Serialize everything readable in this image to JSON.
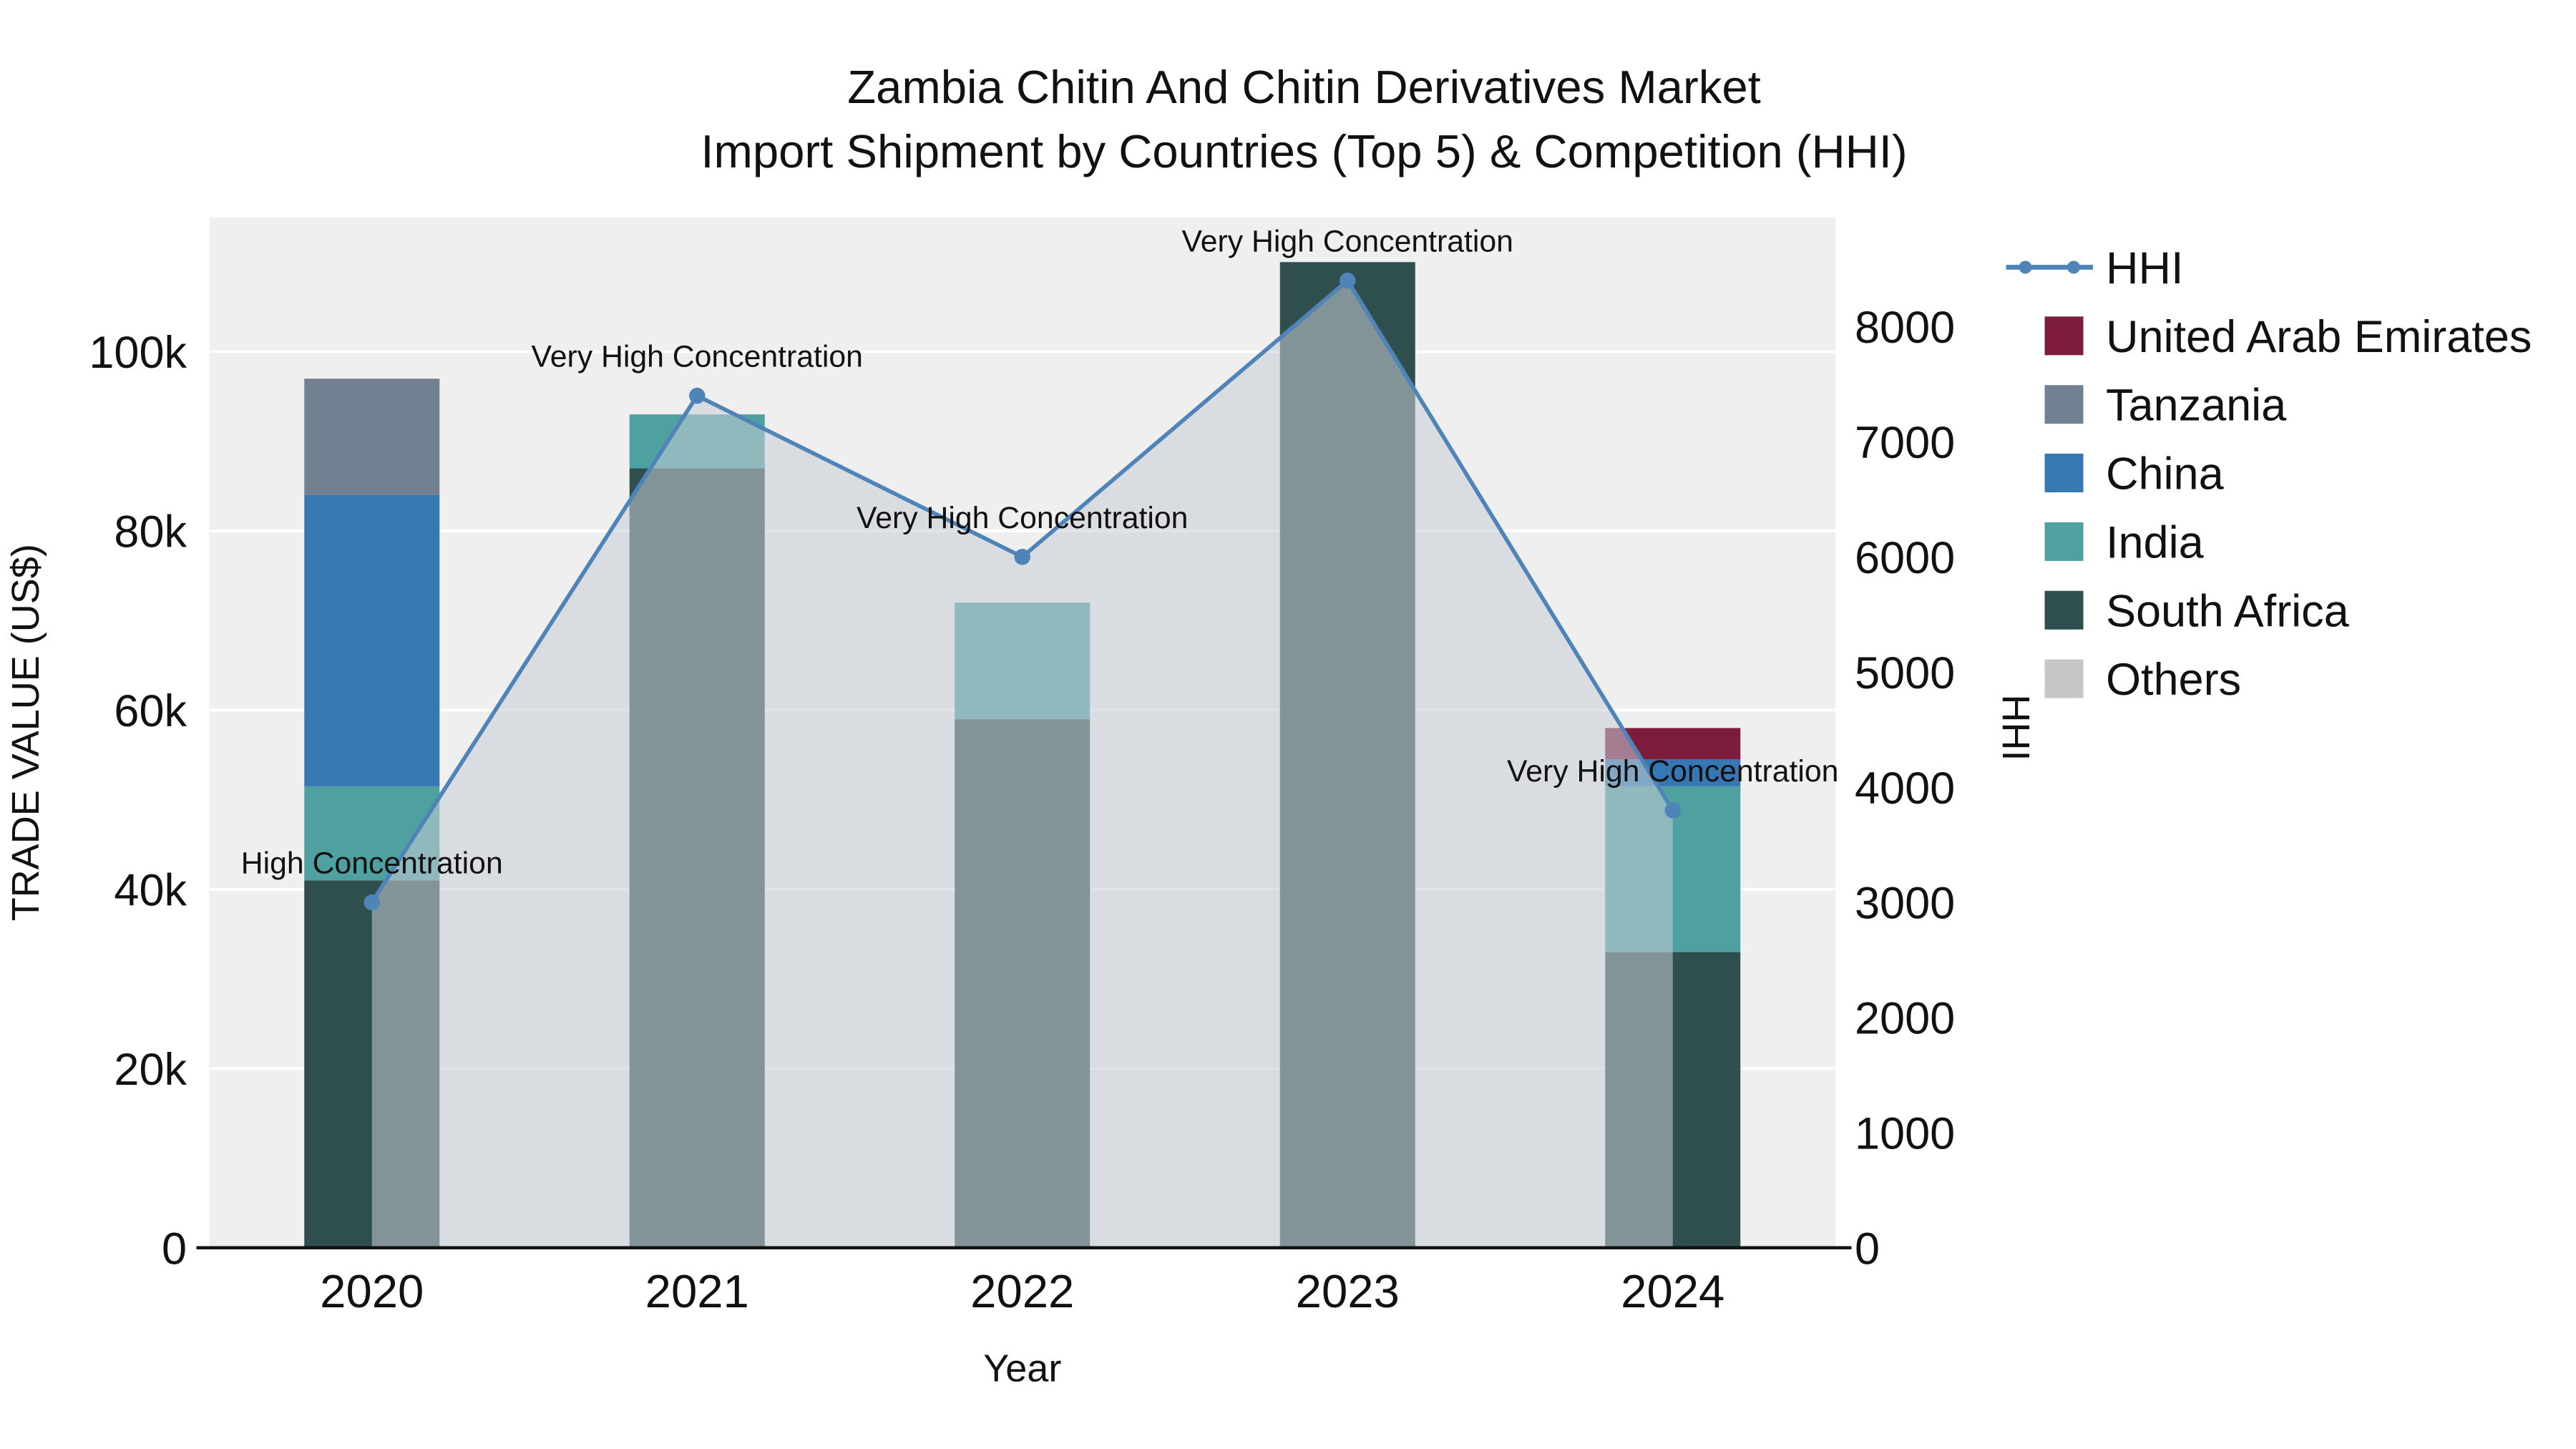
{
  "title": {
    "line1": "Zambia Chitin And Chitin Derivatives Market",
    "line2": "Import Shipment by Countries (Top 5) & Competition (HHI)"
  },
  "chart_data": {
    "type": "bar+line",
    "categories": [
      "2020",
      "2021",
      "2022",
      "2023",
      "2024"
    ],
    "x_axis": {
      "title": "Year"
    },
    "left_axis": {
      "title": "TRADE VALUE (US$)",
      "tick_labels": [
        "0",
        "20k",
        "40k",
        "60k",
        "80k",
        "100k"
      ],
      "tick_values": [
        0,
        20000,
        40000,
        60000,
        80000,
        100000
      ],
      "max": 115000
    },
    "right_axis": {
      "title": "HHI",
      "tick_labels": [
        "0",
        "1000",
        "2000",
        "3000",
        "4000",
        "5000",
        "6000",
        "7000",
        "8000"
      ],
      "tick_values": [
        0,
        1000,
        2000,
        3000,
        4000,
        5000,
        6000,
        7000,
        8000
      ],
      "max": 8950
    },
    "bar_series": [
      {
        "name": "South Africa",
        "color": "#2F4F4F",
        "values": [
          41000,
          87000,
          59000,
          110000,
          33000
        ]
      },
      {
        "name": "India",
        "color": "#4FA0A0",
        "values": [
          10500,
          6000,
          13000,
          0,
          18500
        ]
      },
      {
        "name": "China",
        "color": "#3578B4",
        "values": [
          32500,
          0,
          0,
          0,
          3000
        ]
      },
      {
        "name": "Tanzania",
        "color": "#708090",
        "values": [
          13000,
          0,
          0,
          0,
          0
        ]
      },
      {
        "name": "United Arab Emirates",
        "color": "#7D1C3C",
        "values": [
          0,
          0,
          0,
          0,
          3500
        ]
      },
      {
        "name": "Others",
        "color": "#C6C6C6",
        "values": [
          0,
          0,
          0,
          0,
          0
        ]
      }
    ],
    "line_series": {
      "name": "HHI",
      "color": "#4E84B8",
      "area_color": "rgba(199, 206, 214, 0.55)",
      "values": [
        3000,
        7400,
        6000,
        8400,
        3800
      ]
    },
    "annotations": [
      "High Concentration",
      "Very High Concentration",
      "Very High Concentration",
      "Very High Concentration",
      "Very High Concentration"
    ],
    "legend": [
      "HHI",
      "United Arab Emirates",
      "Tanzania",
      "China",
      "India",
      "South Africa",
      "Others"
    ],
    "plot_background": "#EFEFF0",
    "grid_color": "#FFFFFF",
    "axis_line_color": "#111111",
    "text_color": "#111111"
  }
}
